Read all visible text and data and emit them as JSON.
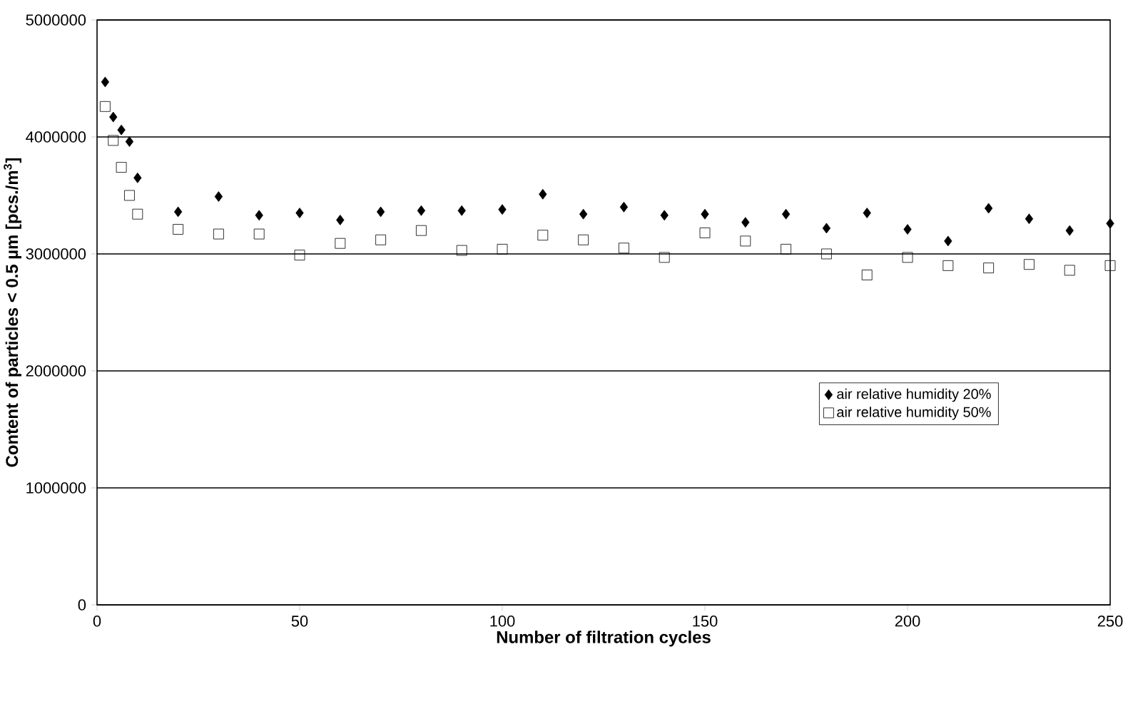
{
  "chart_data": {
    "type": "scatter",
    "xlabel": "Number of filtration cycles",
    "ylabel": "Content of particles < 0.5 µm [pcs./m$^{3}$]",
    "x": [
      2,
      4,
      6,
      8,
      10,
      20,
      30,
      40,
      50,
      60,
      70,
      80,
      90,
      100,
      110,
      120,
      130,
      140,
      150,
      160,
      170,
      180,
      190,
      200,
      210,
      220,
      230,
      240,
      250
    ],
    "series": [
      {
        "name": "air relative humidity 20%",
        "color": "#000000",
        "marker": "diamond",
        "values": [
          4470000,
          4170000,
          4060000,
          3960000,
          3650000,
          3360000,
          3490000,
          3330000,
          3350000,
          3290000,
          3360000,
          3370000,
          3370000,
          3380000,
          3510000,
          3340000,
          3400000,
          3330000,
          3340000,
          3270000,
          3340000,
          3220000,
          3350000,
          3210000,
          3110000,
          3390000,
          3300000,
          3200000,
          3260000
        ]
      },
      {
        "name": "air relative humidity 50%",
        "color": "#000000",
        "marker": "square",
        "values": [
          4260000,
          3970000,
          3740000,
          3500000,
          3340000,
          3210000,
          3170000,
          3170000,
          2990000,
          3090000,
          3120000,
          3200000,
          3030000,
          3040000,
          3160000,
          3120000,
          3050000,
          2970000,
          3180000,
          3110000,
          3040000,
          3000000,
          2820000,
          2970000,
          2900000,
          2880000,
          2910000,
          2860000,
          2900000
        ]
      }
    ],
    "xlim": [
      0,
      250
    ],
    "xticks": [
      0,
      50,
      100,
      150,
      200,
      250
    ],
    "ylim": [
      0,
      5000000
    ],
    "yticks": [
      0,
      1000000,
      2000000,
      3000000,
      4000000,
      5000000
    ],
    "grid": "y",
    "legend": "right"
  }
}
